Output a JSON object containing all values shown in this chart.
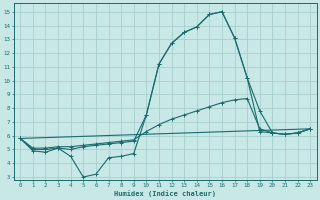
{
  "xlabel": "Humidex (Indice chaleur)",
  "bg_color": "#c8e8e8",
  "line_color": "#1a6b6b",
  "grid_color": "#a8cece",
  "xlim": [
    -0.5,
    23.5
  ],
  "ylim": [
    2.8,
    15.6
  ],
  "xticks": [
    0,
    1,
    2,
    3,
    4,
    5,
    6,
    7,
    8,
    9,
    10,
    11,
    12,
    13,
    14,
    15,
    16,
    17,
    18,
    19,
    20,
    21,
    22,
    23
  ],
  "yticks": [
    3,
    4,
    5,
    6,
    7,
    8,
    9,
    10,
    11,
    12,
    13,
    14,
    15
  ],
  "curve1_x": [
    0,
    1,
    2,
    3,
    4,
    5,
    6,
    7,
    8,
    9,
    10,
    11,
    12,
    13,
    14,
    15,
    16,
    17,
    18,
    19,
    20,
    21,
    22,
    23
  ],
  "curve1_y": [
    5.8,
    4.9,
    4.8,
    5.1,
    4.5,
    3.0,
    3.2,
    4.4,
    4.5,
    4.7,
    7.5,
    11.2,
    12.7,
    13.5,
    13.9,
    14.8,
    15.0,
    13.1,
    10.2,
    7.8,
    6.2,
    6.1,
    6.2,
    6.5
  ],
  "curve2_x": [
    0,
    1,
    2,
    3,
    4,
    5,
    6,
    7,
    8,
    9,
    10,
    11,
    12,
    13,
    14,
    15,
    16,
    17,
    18,
    19,
    20,
    21,
    22,
    23
  ],
  "curve2_y": [
    5.8,
    5.0,
    5.0,
    5.1,
    5.0,
    5.2,
    5.3,
    5.4,
    5.5,
    5.6,
    7.5,
    11.2,
    12.7,
    13.5,
    13.9,
    14.8,
    15.0,
    13.1,
    10.2,
    6.3,
    6.2,
    6.1,
    6.2,
    6.5
  ],
  "curve3_x": [
    0,
    1,
    2,
    3,
    4,
    5,
    6,
    7,
    8,
    9,
    10,
    11,
    12,
    13,
    14,
    15,
    16,
    17,
    18,
    19,
    20,
    21,
    22,
    23
  ],
  "curve3_y": [
    5.8,
    5.1,
    5.1,
    5.2,
    5.2,
    5.3,
    5.4,
    5.5,
    5.6,
    5.7,
    6.3,
    6.8,
    7.2,
    7.5,
    7.8,
    8.1,
    8.4,
    8.6,
    8.7,
    6.5,
    6.2,
    6.1,
    6.2,
    6.5
  ],
  "curve4_x": [
    0,
    23
  ],
  "curve4_y": [
    5.8,
    6.5
  ]
}
